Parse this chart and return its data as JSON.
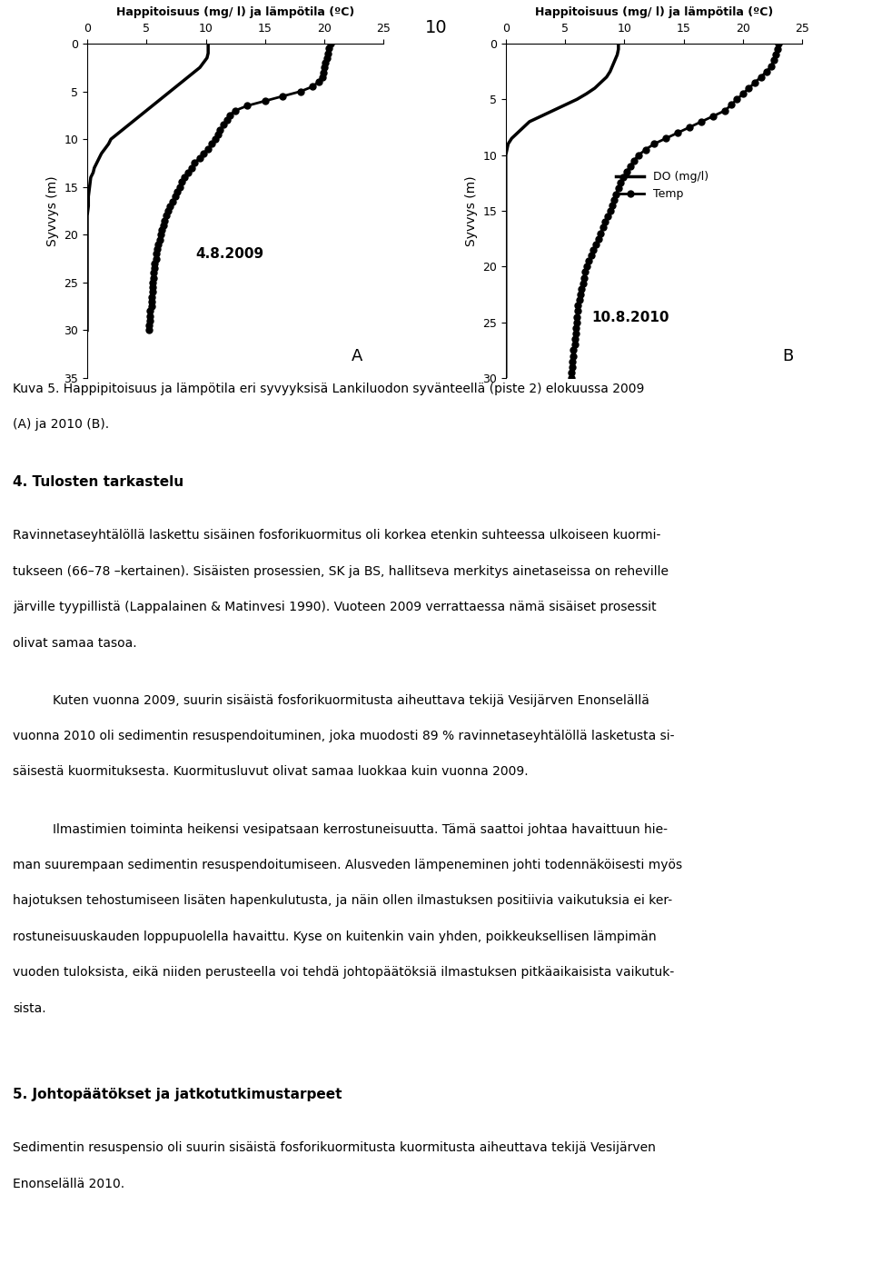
{
  "page_number": "10",
  "xlabel": "Happitoisuus (mg/ l) ja lämpötila (ºC)",
  "ylabel": "Syvvys (m)",
  "xlim": [
    0,
    25
  ],
  "xticks": [
    0,
    5,
    10,
    15,
    20,
    25
  ],
  "plot_A_date": "4.8.2009",
  "plot_B_date": "10.8.2010",
  "label_A": "A",
  "label_B": "B",
  "legend_do": "DO (mg/l)",
  "legend_temp": "Temp",
  "do_2009_depth": [
    0,
    0.5,
    1,
    1.5,
    2,
    2.5,
    3,
    3.5,
    4,
    4.5,
    5,
    5.5,
    6,
    6.5,
    7,
    7.5,
    8,
    8.5,
    9,
    9.5,
    10,
    10.5,
    11,
    11.5,
    12,
    12.5,
    13,
    13.5,
    14,
    15,
    16,
    17,
    18,
    19,
    20,
    21,
    22,
    23,
    24,
    25,
    26,
    27,
    28,
    29,
    30
  ],
  "do_2009_values": [
    10.2,
    10.2,
    10.2,
    10.1,
    9.8,
    9.5,
    9.0,
    8.5,
    8.0,
    7.5,
    7.0,
    6.5,
    6.0,
    5.5,
    5.0,
    4.5,
    4.0,
    3.5,
    3.0,
    2.5,
    2.0,
    1.8,
    1.5,
    1.2,
    1.0,
    0.8,
    0.6,
    0.5,
    0.3,
    0.2,
    0.1,
    0.1,
    0.0,
    0.0,
    0.0,
    0.0,
    0.0,
    0.0,
    0.0,
    0.0,
    0.0,
    0.0,
    0.0,
    0.0,
    0.0
  ],
  "temp_2009_depth": [
    0,
    0.5,
    1,
    1.5,
    2,
    2.5,
    3,
    3.5,
    4,
    4.5,
    5,
    5.5,
    6,
    6.5,
    7,
    7.5,
    8,
    8.5,
    9,
    9.5,
    10,
    10.5,
    11,
    11.5,
    12,
    12.5,
    13,
    13.5,
    14,
    14.5,
    15,
    15.5,
    16,
    16.5,
    17,
    17.5,
    18,
    18.5,
    19,
    19.5,
    20,
    20.5,
    21,
    21.5,
    22,
    22.5,
    23,
    23.5,
    24,
    24.5,
    25,
    25.5,
    26,
    26.5,
    27,
    27.5,
    28,
    28.5,
    29,
    29.5,
    30
  ],
  "temp_2009_values": [
    20.5,
    20.4,
    20.3,
    20.2,
    20.1,
    20.0,
    19.9,
    19.8,
    19.5,
    19.0,
    18.0,
    16.5,
    15.0,
    13.5,
    12.5,
    12.0,
    11.8,
    11.5,
    11.2,
    11.0,
    10.8,
    10.5,
    10.2,
    9.8,
    9.5,
    9.0,
    8.8,
    8.5,
    8.2,
    8.0,
    7.8,
    7.6,
    7.4,
    7.2,
    7.0,
    6.8,
    6.7,
    6.5,
    6.4,
    6.3,
    6.2,
    6.1,
    6.0,
    5.9,
    5.8,
    5.8,
    5.7,
    5.7,
    5.6,
    5.6,
    5.5,
    5.5,
    5.5,
    5.4,
    5.4,
    5.4,
    5.3,
    5.3,
    5.3,
    5.2,
    5.2
  ],
  "do_2010_depth": [
    0,
    0.5,
    1,
    1.5,
    2,
    2.5,
    3,
    3.5,
    4,
    4.5,
    5,
    5.5,
    6,
    6.5,
    7,
    7.5,
    8,
    8.5,
    9,
    9.5,
    10,
    10.5,
    11,
    11.5,
    12,
    12.5,
    13,
    13.5,
    14,
    15,
    16,
    17,
    18,
    19,
    20,
    21,
    22,
    23,
    24,
    25,
    26,
    27,
    28,
    29,
    30
  ],
  "do_2010_values": [
    9.5,
    9.5,
    9.4,
    9.2,
    9.0,
    8.8,
    8.5,
    8.0,
    7.5,
    6.8,
    6.0,
    5.0,
    4.0,
    3.0,
    2.0,
    1.5,
    1.0,
    0.5,
    0.2,
    0.1,
    0.0,
    0.0,
    0.0,
    0.0,
    0.0,
    0.0,
    0.0,
    0.0,
    0.0,
    0.0,
    0.0,
    0.0,
    0.0,
    0.0,
    0.0,
    0.0,
    0.0,
    0.0,
    0.0,
    0.0,
    0.0,
    0.0,
    0.0,
    0.0,
    0.0
  ],
  "temp_2010_depth": [
    0,
    0.5,
    1,
    1.5,
    2,
    2.5,
    3,
    3.5,
    4,
    4.5,
    5,
    5.5,
    6,
    6.5,
    7,
    7.5,
    8,
    8.5,
    9,
    9.5,
    10,
    10.5,
    11,
    11.5,
    12,
    12.5,
    13,
    13.5,
    14,
    14.5,
    15,
    15.5,
    16,
    16.5,
    17,
    17.5,
    18,
    18.5,
    19,
    19.5,
    20,
    20.5,
    21,
    21.5,
    22,
    22.5,
    23,
    23.5,
    24,
    24.5,
    25,
    25.5,
    26,
    26.5,
    27,
    27.5,
    28,
    28.5,
    29,
    29.5,
    30
  ],
  "temp_2010_values": [
    23.0,
    22.9,
    22.8,
    22.6,
    22.4,
    22.0,
    21.5,
    21.0,
    20.5,
    20.0,
    19.5,
    19.0,
    18.5,
    17.5,
    16.5,
    15.5,
    14.5,
    13.5,
    12.5,
    11.8,
    11.2,
    10.8,
    10.5,
    10.2,
    9.9,
    9.7,
    9.5,
    9.3,
    9.1,
    9.0,
    8.8,
    8.6,
    8.4,
    8.2,
    8.0,
    7.8,
    7.6,
    7.4,
    7.2,
    7.0,
    6.8,
    6.7,
    6.6,
    6.5,
    6.4,
    6.3,
    6.2,
    6.1,
    6.1,
    6.0,
    6.0,
    5.9,
    5.9,
    5.8,
    5.8,
    5.7,
    5.7,
    5.6,
    5.6,
    5.5,
    5.5
  ],
  "ylim_A": [
    35,
    0
  ],
  "ylim_B": [
    30,
    0
  ],
  "yticks_A": [
    0,
    5,
    10,
    15,
    20,
    25,
    30,
    35
  ],
  "yticks_B": [
    0,
    5,
    10,
    15,
    20,
    25,
    30
  ],
  "caption_line1": "Kuva 5. Happipitoisuus ja lämpötila eri syvyyksisä Lankiluodon syvänteellä (piste 2) elokuussa 2009",
  "caption_line2": "(A) ja 2010 (B).",
  "section4_title": "4. Tulosten tarkastelu",
  "s4_p1": [
    "Ravinnetaseyhtälöllä laskettu sisäinen fosforikuormitus oli korkea etenkin suhteessa ulkoiseen kuormi-",
    "tukseen (66–78 –kertainen). Sisäisten prosessien, SK ja BS, hallitseva merkitys ainetaseissa on reheville",
    "järville tyypillistä (Lappalainen & Matinvesi 1990). Vuoteen 2009 verrattaessa nämä sisäiset prosessit",
    "olivat samaa tasoa."
  ],
  "s4_p2": [
    "Kuten vuonna 2009, suurin sisäistä fosforikuormitusta aiheuttava tekijä Vesijärven Enonselällä",
    "vuonna 2010 oli sedimentin resuspendoituminen, joka muodosti 89 % ravinnetaseyhtälöllä lasketusta si-",
    "säisestä kuormituksesta. Kuormitusluvut olivat samaa luokkaa kuin vuonna 2009."
  ],
  "s4_p3": [
    "Ilmastimien toiminta heikensi vesipatsaan kerrostuneisuutta. Tämä saattoi johtaa havaittuun hie-",
    "man suurempaan sedimentin resuspendoitumiseen. Alusveden lämpeneminen johti todennäköisesti myös",
    "hajotuksen tehostumiseen lisäten hapenkulutusta, ja näin ollen ilmastuksen positiivia vaikutuksia ei ker-",
    "rostuneisuuskauden loppupuolella havaittu. Kyse on kuitenkin vain yhden, poikkeuksellisen lämpimän",
    "vuoden tuloksista, eikä niiden perusteella voi tehdä johtopäätöksiä ilmastuksen pitkäaikaisista vaikutuk-",
    "sista."
  ],
  "section5_title": "5. Johtopäätökset ja jatkotutkimustarpeet",
  "s5_p1": [
    "Sedimentin resuspensio oli suurin sisäistä fosforikuormitusta kuormitusta aiheuttava tekijä Vesijärven",
    "Enonselällä 2010."
  ],
  "line_color": "#000000",
  "bg_color": "#ffffff",
  "text_color": "#000000",
  "marker": "o",
  "markersize": 5,
  "linewidth": 2.0,
  "do_linewidth": 2.5
}
